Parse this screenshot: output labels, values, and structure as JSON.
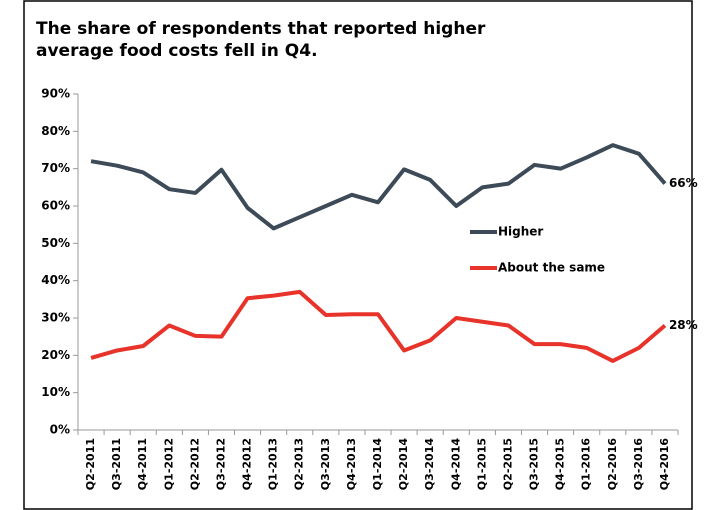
{
  "chart_data": {
    "type": "line",
    "title": "The share of respondents that reported higher average food costs fell in Q4.",
    "categories": [
      "Q2-2011",
      "Q3-2011",
      "Q4-2011",
      "Q1-2012",
      "Q2-2012",
      "Q3-2012",
      "Q4-2012",
      "Q1-2013",
      "Q2-2013",
      "Q3-2013",
      "Q4-2013",
      "Q1-2014",
      "Q2-2014",
      "Q3-2014",
      "Q4-2014",
      "Q1-2015",
      "Q2-2015",
      "Q3-2015",
      "Q4-2015",
      "Q1-2016",
      "Q2-2016",
      "Q3-2016",
      "Q4-2016"
    ],
    "series": [
      {
        "name": "Higher",
        "color": "#3d4a57",
        "values": [
          72,
          70.8,
          69,
          64.5,
          63.5,
          69.7,
          59.5,
          54,
          57,
          60,
          63,
          61,
          69.8,
          67,
          60,
          65,
          66,
          71,
          70,
          73,
          76.3,
          74,
          66
        ],
        "value_labels": [
          null,
          null,
          null,
          null,
          null,
          null,
          null,
          null,
          null,
          null,
          null,
          null,
          null,
          null,
          null,
          null,
          null,
          null,
          null,
          null,
          null,
          null,
          "66%"
        ]
      },
      {
        "name": "About the same",
        "color": "#e8332a",
        "values": [
          19.3,
          21.3,
          22.5,
          28,
          25.2,
          25,
          35.3,
          36,
          37,
          30.8,
          31,
          31,
          21.3,
          24,
          30,
          29,
          28,
          23,
          23,
          22,
          18.5,
          22,
          28
        ],
        "value_labels": [
          null,
          null,
          null,
          null,
          null,
          null,
          null,
          null,
          null,
          null,
          null,
          null,
          null,
          null,
          null,
          null,
          null,
          null,
          null,
          null,
          null,
          null,
          "28%"
        ]
      }
    ],
    "ylim": [
      0,
      90
    ],
    "yticks": [
      {
        "value": 0,
        "label": "0%"
      },
      {
        "value": 10,
        "label": "10%"
      },
      {
        "value": 20,
        "label": "20%"
      },
      {
        "value": 30,
        "label": "30%"
      },
      {
        "value": 40,
        "label": "40%"
      },
      {
        "value": 50,
        "label": "50%"
      },
      {
        "value": 60,
        "label": "60%"
      },
      {
        "value": 70,
        "label": "70%"
      },
      {
        "value": 80,
        "label": "80%"
      },
      {
        "value": 90,
        "label": "90%"
      }
    ],
    "grid": false
  }
}
